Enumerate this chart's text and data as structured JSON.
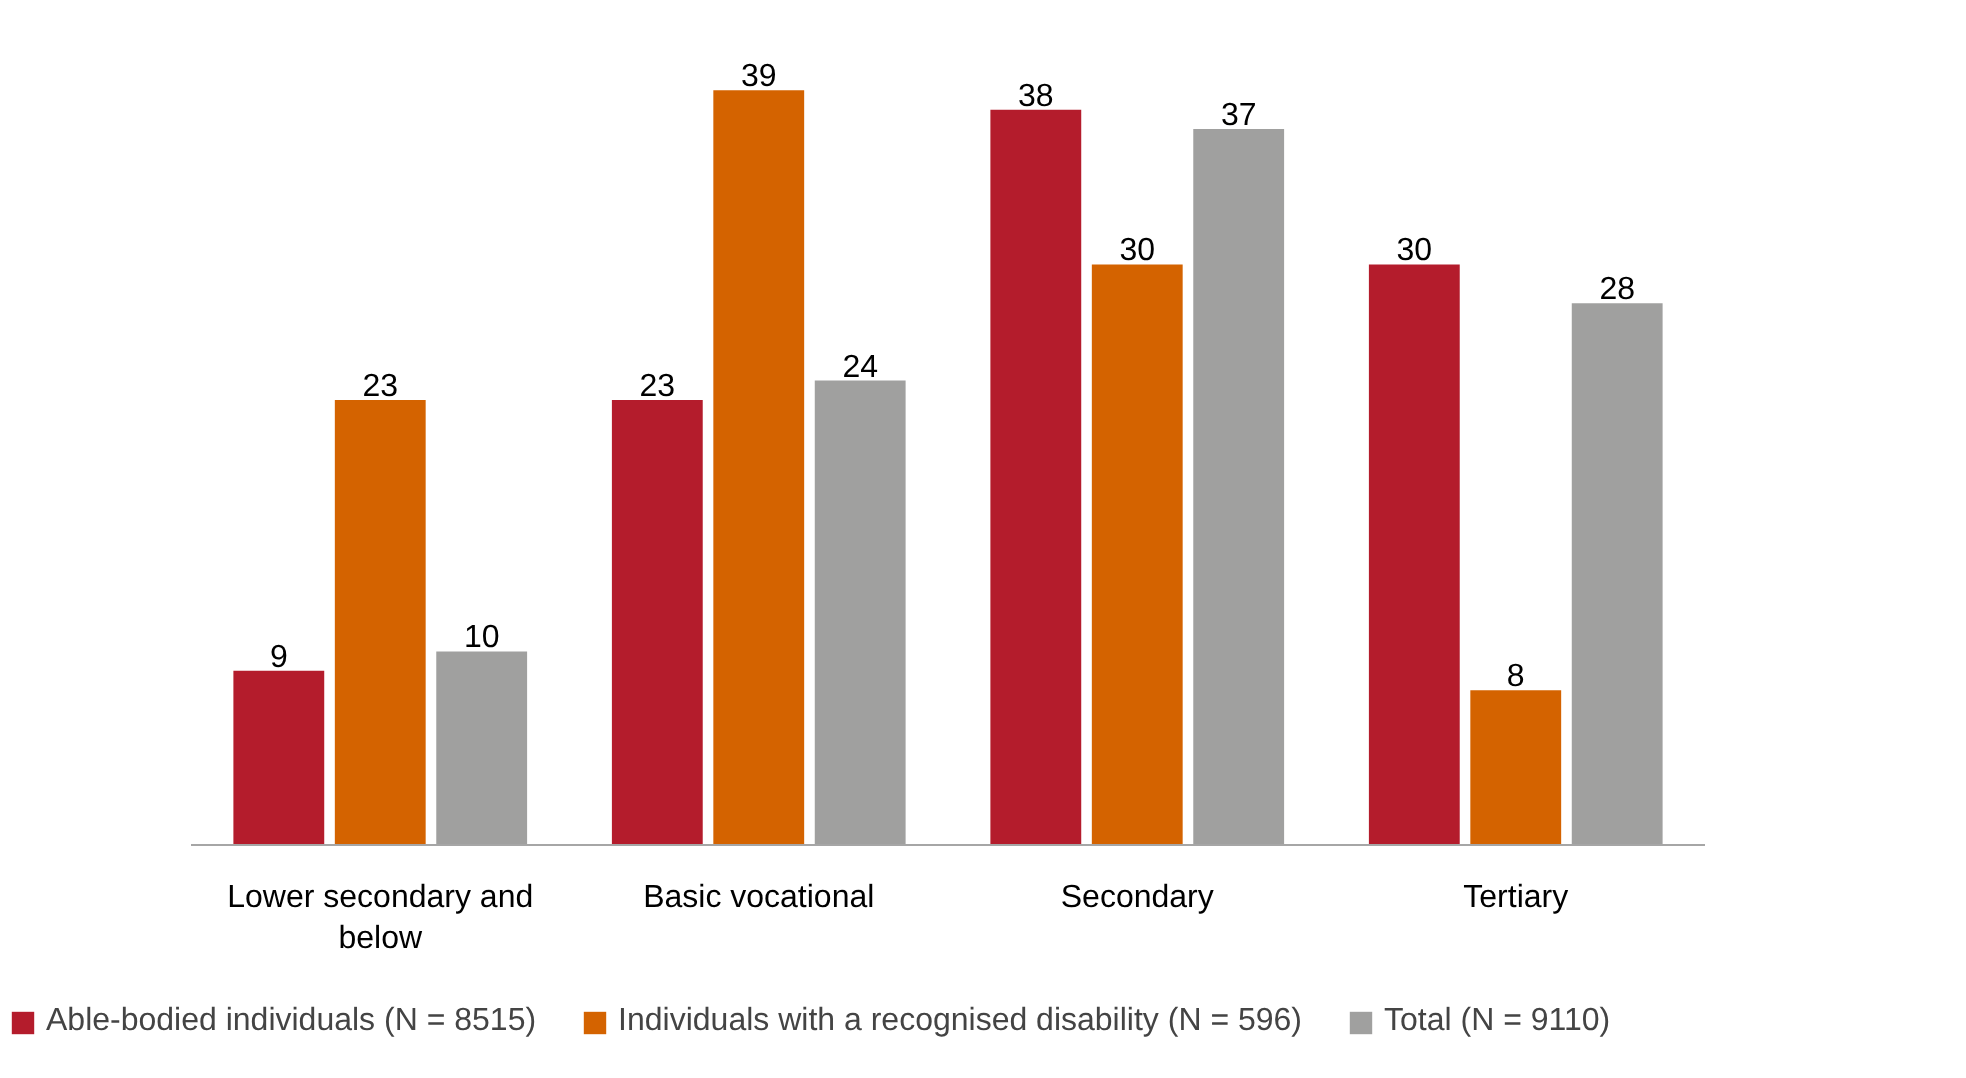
{
  "chart_data": {
    "type": "bar",
    "categories": [
      "Lower secondary and below",
      "Basic vocational",
      "Secondary",
      "Tertiary"
    ],
    "series": [
      {
        "name": "Able-bodied individuals (N = 8515)",
        "color": "#b41c2c",
        "values": [
          9,
          23,
          38,
          30
        ]
      },
      {
        "name": "Individuals with a recognised disability (N = 596)",
        "color": "#d46300",
        "values": [
          23,
          39,
          30,
          8
        ]
      },
      {
        "name": "Total (N = 9110)",
        "color": "#a0a09f",
        "values": [
          10,
          24,
          37,
          28
        ]
      }
    ],
    "data_labels": true,
    "legend": "bottom",
    "grid": false
  }
}
